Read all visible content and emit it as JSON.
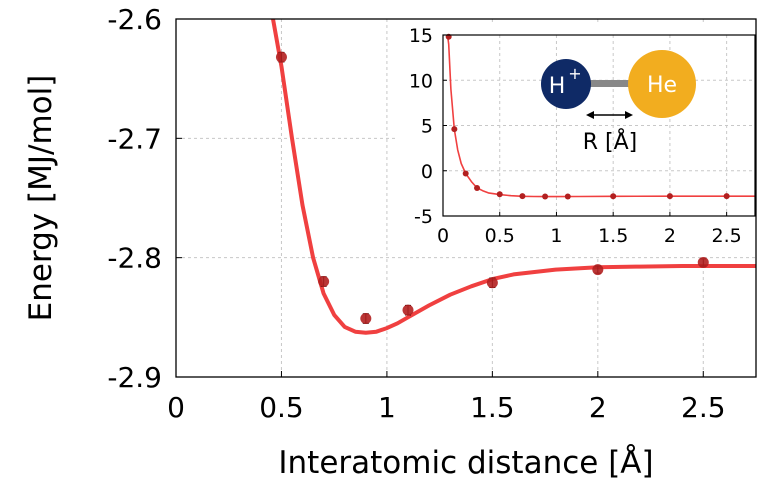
{
  "chart_data": [
    {
      "id": "main",
      "type": "scatter",
      "title": "",
      "xlabel": "Interatomic distance [Å]",
      "ylabel": "Energy [MJ/mol]",
      "xlim": [
        0,
        2.75
      ],
      "ylim": [
        -2.9,
        -2.6
      ],
      "xticks": [
        0,
        0.5,
        1,
        1.5,
        2,
        2.5
      ],
      "xtick_labels": [
        "0",
        "0.5",
        "1",
        "1.5",
        "2",
        "2.5"
      ],
      "yticks": [
        -2.9,
        -2.8,
        -2.7,
        -2.6
      ],
      "ytick_labels": [
        "-2.9",
        "-2.8",
        "-2.7",
        "-2.6"
      ],
      "grid": true,
      "series": [
        {
          "name": "data",
          "kind": "scatter-with-errorbars",
          "color": "#b22020",
          "x": [
            0.5,
            0.7,
            0.9,
            1.1,
            1.5,
            2.0,
            2.5
          ],
          "y": [
            -2.632,
            -2.82,
            -2.851,
            -2.844,
            -2.821,
            -2.81,
            -2.804
          ],
          "yerr": [
            0.004,
            0.004,
            0.004,
            0.004,
            0.004,
            0.003,
            0.003
          ]
        },
        {
          "name": "fit",
          "kind": "line",
          "color": "#f04040",
          "x": [
            0.46,
            0.5,
            0.55,
            0.6,
            0.65,
            0.7,
            0.75,
            0.8,
            0.85,
            0.9,
            0.95,
            1.0,
            1.05,
            1.1,
            1.2,
            1.3,
            1.4,
            1.5,
            1.6,
            1.8,
            2.0,
            2.2,
            2.4,
            2.6,
            2.75
          ],
          "y": [
            -2.6,
            -2.64,
            -2.7,
            -2.756,
            -2.8,
            -2.83,
            -2.848,
            -2.858,
            -2.862,
            -2.863,
            -2.862,
            -2.859,
            -2.855,
            -2.85,
            -2.84,
            -2.831,
            -2.824,
            -2.818,
            -2.814,
            -2.81,
            -2.808,
            -2.8075,
            -2.807,
            -2.807,
            -2.807
          ]
        }
      ]
    },
    {
      "id": "inset",
      "type": "scatter",
      "title": "",
      "xlabel": "",
      "ylabel": "",
      "xlim": [
        0,
        2.75
      ],
      "ylim": [
        -5,
        15
      ],
      "xticks": [
        0,
        0.5,
        1,
        1.5,
        2,
        2.5
      ],
      "xtick_labels": [
        "0",
        "0.5",
        "1",
        "1.5",
        "2",
        "2.5"
      ],
      "yticks": [
        -5,
        0,
        5,
        10,
        15
      ],
      "ytick_labels": [
        "-5",
        "0",
        "5",
        "10",
        "15"
      ],
      "grid": true,
      "series": [
        {
          "name": "data",
          "kind": "scatter",
          "color": "#b22020",
          "x": [
            0.05,
            0.1,
            0.2,
            0.3,
            0.5,
            0.7,
            0.9,
            1.1,
            1.5,
            2.0,
            2.5
          ],
          "y": [
            14.8,
            4.6,
            -0.3,
            -1.9,
            -2.6,
            -2.8,
            -2.85,
            -2.84,
            -2.82,
            -2.81,
            -2.8
          ]
        },
        {
          "name": "fit",
          "kind": "line",
          "color": "#f04040",
          "x": [
            0.04,
            0.05,
            0.07,
            0.1,
            0.13,
            0.16,
            0.2,
            0.25,
            0.3,
            0.35,
            0.4,
            0.5,
            0.6,
            0.7,
            0.8,
            0.9,
            1.0,
            1.2,
            1.5,
            2.0,
            2.5,
            2.75
          ],
          "y": [
            15.0,
            14.0,
            9.0,
            4.6,
            2.3,
            0.8,
            -0.3,
            -1.2,
            -1.9,
            -2.2,
            -2.45,
            -2.64,
            -2.76,
            -2.82,
            -2.85,
            -2.86,
            -2.86,
            -2.84,
            -2.82,
            -2.81,
            -2.807,
            -2.807
          ]
        }
      ],
      "diagram": {
        "atom1": "H",
        "atom1_charge": "+",
        "atom2": "He",
        "distance_label": "R [Å]",
        "atom1_color": "#0f2a66",
        "atom2_color": "#f2ad1f",
        "bond_color": "#888888"
      }
    }
  ]
}
